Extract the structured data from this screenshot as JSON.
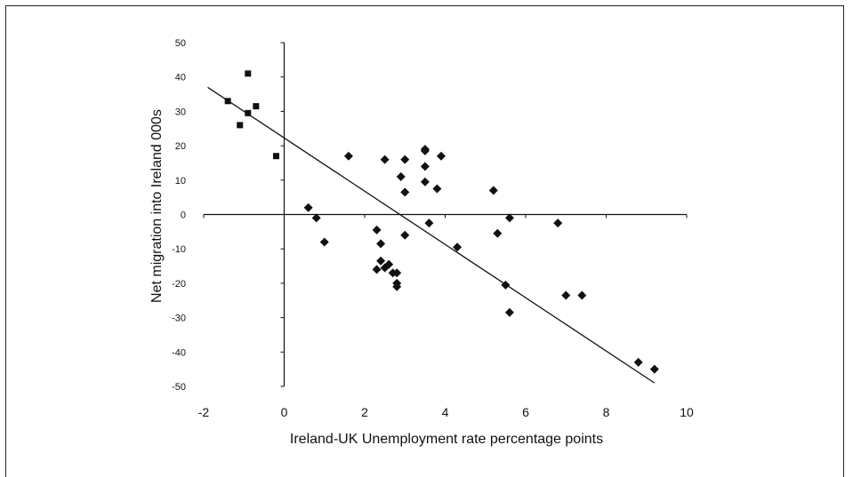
{
  "chart_data": {
    "type": "scatter",
    "xlabel": "Ireland-UK Unemployment rate percentage points",
    "ylabel": "Net migration into Ireland 000s",
    "xlim": [
      -2,
      10
    ],
    "ylim": [
      -50,
      50
    ],
    "x_ticks": [
      "-2",
      "0",
      "2",
      "4",
      "6",
      "8",
      "10"
    ],
    "y_ticks": [
      "50",
      "40",
      "30",
      "20",
      "10",
      "0",
      "-10",
      "-20",
      "-30",
      "-40",
      "-50"
    ],
    "grid": false,
    "series": [
      {
        "marker": "square",
        "points": [
          {
            "x": -1.4,
            "y": 33
          },
          {
            "x": -0.9,
            "y": 41
          },
          {
            "x": -0.9,
            "y": 29.5
          },
          {
            "x": -0.7,
            "y": 31.5
          },
          {
            "x": -1.1,
            "y": 26
          },
          {
            "x": -0.2,
            "y": 17
          }
        ]
      },
      {
        "marker": "diamond",
        "points": [
          {
            "x": 0.6,
            "y": 2
          },
          {
            "x": 0.8,
            "y": -1
          },
          {
            "x": 1.0,
            "y": -8
          },
          {
            "x": 1.6,
            "y": 17
          },
          {
            "x": 2.3,
            "y": -4.5
          },
          {
            "x": 2.4,
            "y": -8.5
          },
          {
            "x": 2.5,
            "y": 16
          },
          {
            "x": 2.3,
            "y": -16
          },
          {
            "x": 2.4,
            "y": -13.5
          },
          {
            "x": 2.6,
            "y": -14.5
          },
          {
            "x": 2.5,
            "y": -15.5
          },
          {
            "x": 2.7,
            "y": -17
          },
          {
            "x": 2.8,
            "y": -17
          },
          {
            "x": 2.8,
            "y": -20
          },
          {
            "x": 2.8,
            "y": -21
          },
          {
            "x": 2.9,
            "y": 11
          },
          {
            "x": 3.0,
            "y": 16
          },
          {
            "x": 3.0,
            "y": 6.5
          },
          {
            "x": 3.0,
            "y": -6
          },
          {
            "x": 3.5,
            "y": 18.5
          },
          {
            "x": 3.5,
            "y": 19
          },
          {
            "x": 3.5,
            "y": 14
          },
          {
            "x": 3.5,
            "y": 9.5
          },
          {
            "x": 3.6,
            "y": -2.5
          },
          {
            "x": 3.8,
            "y": 7.5
          },
          {
            "x": 3.9,
            "y": 17
          },
          {
            "x": 4.3,
            "y": -9.5
          },
          {
            "x": 5.2,
            "y": 7
          },
          {
            "x": 5.3,
            "y": -5.5
          },
          {
            "x": 5.5,
            "y": -20.5
          },
          {
            "x": 5.6,
            "y": -1
          },
          {
            "x": 5.6,
            "y": -28.5
          },
          {
            "x": 6.8,
            "y": -2.5
          },
          {
            "x": 7.0,
            "y": -23.5
          },
          {
            "x": 7.4,
            "y": -23.5
          },
          {
            "x": 8.8,
            "y": -43
          },
          {
            "x": 9.2,
            "y": -45
          }
        ]
      }
    ],
    "trendline": {
      "x": [
        -1.9,
        9.2
      ],
      "y": [
        37,
        -49
      ]
    }
  }
}
